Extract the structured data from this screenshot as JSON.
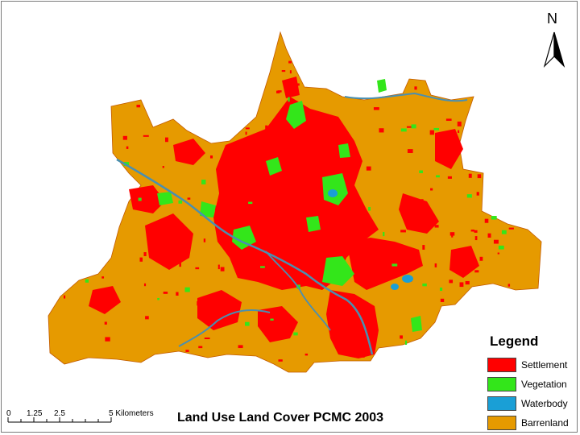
{
  "map": {
    "title": "Land Use Land Cover PCMC 2003",
    "north_arrow": {
      "label": "N"
    },
    "legend": {
      "title": "Legend",
      "items": [
        {
          "label": "Settlement",
          "color": "#ff0000"
        },
        {
          "label": "Vegetation",
          "color": "#33e61a"
        },
        {
          "label": "Waterbody",
          "color": "#1a9fd6"
        },
        {
          "label": "Barrenland",
          "color": "#e69a00"
        }
      ]
    },
    "scale_bar": {
      "ticks": [
        "0",
        "1.25",
        "2.5",
        "5 Kilometers"
      ]
    },
    "colors": {
      "settlement": "#ff0000",
      "vegetation": "#33e61a",
      "waterbody": "#1a9fd6",
      "barrenland": "#e69a00",
      "river": "#4a8fb0"
    }
  }
}
